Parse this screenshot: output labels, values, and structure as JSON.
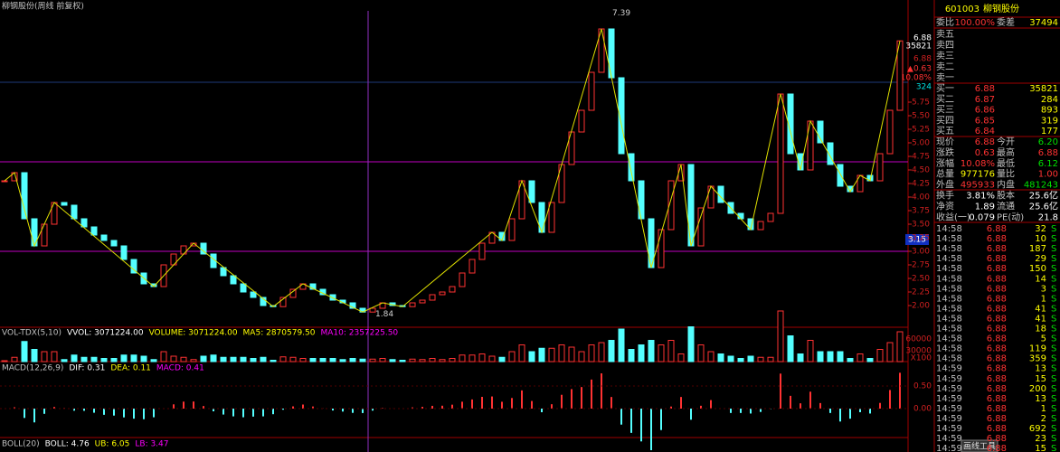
{
  "chart_title": "柳钢股份(周线 前复权)",
  "price_panel": {
    "ticks": [
      "5.75",
      "5.50",
      "5.25",
      "5.00",
      "4.75",
      "4.50",
      "4.25",
      "4.00",
      "3.75",
      "3.50",
      "3.25",
      "3.00",
      "2.75",
      "2.50",
      "2.25",
      "2.00"
    ],
    "cursor_labels": [
      "6.88",
      "35821",
      "6.88",
      "▲0.63",
      "10.08%",
      "324"
    ],
    "high_label": "7.39",
    "low_label": "1.84",
    "line_label": "3.15",
    "closes": [
      4.3,
      4.45,
      3.6,
      3.1,
      3.5,
      3.9,
      3.85,
      3.6,
      3.45,
      3.3,
      3.2,
      3.1,
      2.85,
      2.6,
      2.4,
      2.35,
      2.75,
      2.95,
      3.1,
      3.15,
      2.95,
      2.7,
      2.55,
      2.4,
      2.25,
      2.15,
      2.0,
      1.98,
      2.15,
      2.3,
      2.4,
      2.3,
      2.2,
      2.1,
      2.05,
      1.95,
      1.88,
      1.95,
      2.05,
      2.0,
      1.98,
      2.05,
      2.1,
      2.2,
      2.25,
      2.35,
      2.6,
      2.85,
      3.15,
      3.35,
      3.2,
      3.6,
      4.3,
      3.9,
      3.35,
      3.9,
      4.6,
      5.2,
      5.6,
      6.3,
      7.1,
      6.2,
      4.8,
      4.3,
      3.6,
      2.7,
      3.4,
      4.3,
      4.6,
      3.1,
      3.8,
      4.2,
      3.9,
      3.7,
      3.6,
      3.4,
      3.55,
      3.7,
      5.9,
      4.8,
      4.5,
      5.4,
      5.0,
      4.6,
      4.2,
      4.1,
      4.4,
      4.3,
      4.8,
      5.6,
      6.88
    ]
  },
  "volume_panel": {
    "label_parts": [
      {
        "text": "VOL-TDX(5,10)",
        "color": "#c0c0c0"
      },
      {
        "text": "VVOL: 3071224.00",
        "color": "#ffffff"
      },
      {
        "text": "VOLUME: 3071224.00",
        "color": "#ffff00"
      },
      {
        "text": "MA5: 2870579.50",
        "color": "#ffff00"
      },
      {
        "text": "MA10: 2357225.50",
        "color": "#ff00ff"
      }
    ],
    "ticks": [
      "60000",
      "30000",
      "X100"
    ]
  },
  "macd_panel": {
    "label_parts": [
      {
        "text": "MACD(12,26,9)",
        "color": "#c0c0c0"
      },
      {
        "text": "DIF: 0.31",
        "color": "#ffffff"
      },
      {
        "text": "DEA: 0.11",
        "color": "#ffff00"
      },
      {
        "text": "MACD: 0.41",
        "color": "#ff00ff"
      }
    ],
    "ticks": [
      "0.50",
      "0.00"
    ]
  },
  "boll_panel": {
    "label_parts": [
      {
        "text": "BOLL(20)",
        "color": "#c0c0c0"
      },
      {
        "text": "BOLL: 4.76",
        "color": "#ffffff"
      },
      {
        "text": "UB: 6.05",
        "color": "#ffff00"
      },
      {
        "text": "LB: 3.47",
        "color": "#ff00ff"
      }
    ]
  },
  "quote": {
    "code": "601003",
    "name": "柳钢股份",
    "ratio": {
      "label": "委比",
      "value": "100.00%",
      "label2": "委差",
      "value2": "37494"
    },
    "asks": [
      "卖五",
      "卖四",
      "卖三",
      "卖二",
      "卖一"
    ],
    "bids": [
      {
        "label": "买一",
        "price": "6.88",
        "volume": "35821"
      },
      {
        "label": "买二",
        "price": "6.87",
        "volume": "284"
      },
      {
        "label": "买三",
        "price": "6.86",
        "volume": "893"
      },
      {
        "label": "买四",
        "price": "6.85",
        "volume": "319"
      },
      {
        "label": "买五",
        "price": "6.84",
        "volume": "177"
      }
    ],
    "stats": [
      {
        "label": "现价",
        "value": "6.88",
        "label2": "今开",
        "value2": "6.20"
      },
      {
        "label": "涨跌",
        "value": "0.63",
        "label2": "最高",
        "value2": "6.88"
      },
      {
        "label": "涨幅",
        "value": "10.08%",
        "label2": "最低",
        "value2": "6.12"
      },
      {
        "label": "总量",
        "value": "977176",
        "label2": "量比",
        "value2": "1.00"
      },
      {
        "label": "外盘",
        "value": "495933",
        "label2": "内盘",
        "value2": "481243"
      },
      {
        "label": "换手",
        "value": "3.81%",
        "label2": "股本",
        "value2": "25.6亿"
      },
      {
        "label": "净资",
        "value": "1.89",
        "label2": "流通",
        "value2": "25.6亿"
      },
      {
        "label": "收益(一)",
        "value": "0.079",
        "label2": "PE(动)",
        "value2": "21.8"
      }
    ],
    "trades": [
      {
        "time": "14:58",
        "price": "6.88",
        "volume": "32",
        "side": "S"
      },
      {
        "time": "14:58",
        "price": "6.88",
        "volume": "10",
        "side": "S"
      },
      {
        "time": "14:58",
        "price": "6.88",
        "volume": "187",
        "side": "S"
      },
      {
        "time": "14:58",
        "price": "6.88",
        "volume": "29",
        "side": "S"
      },
      {
        "time": "14:58",
        "price": "6.88",
        "volume": "150",
        "side": "S"
      },
      {
        "time": "14:58",
        "price": "6.88",
        "volume": "14",
        "side": "S"
      },
      {
        "time": "14:58",
        "price": "6.88",
        "volume": "3",
        "side": "S"
      },
      {
        "time": "14:58",
        "price": "6.88",
        "volume": "1",
        "side": "S"
      },
      {
        "time": "14:58",
        "price": "6.88",
        "volume": "41",
        "side": "S"
      },
      {
        "time": "14:58",
        "price": "6.88",
        "volume": "41",
        "side": "S"
      },
      {
        "time": "14:58",
        "price": "6.88",
        "volume": "18",
        "side": "S"
      },
      {
        "time": "14:58",
        "price": "6.88",
        "volume": "5",
        "side": "S"
      },
      {
        "time": "14:58",
        "price": "6.88",
        "volume": "119",
        "side": "S"
      },
      {
        "time": "14:58",
        "price": "6.88",
        "volume": "359",
        "side": "S"
      },
      {
        "time": "14:59",
        "price": "6.88",
        "volume": "13",
        "side": "S"
      },
      {
        "time": "14:59",
        "price": "6.88",
        "volume": "15",
        "side": "S"
      },
      {
        "time": "14:59",
        "price": "6.88",
        "volume": "200",
        "side": "S"
      },
      {
        "time": "14:59",
        "price": "6.88",
        "volume": "13",
        "side": "S"
      },
      {
        "time": "14:59",
        "price": "6.88",
        "volume": "1",
        "side": "S"
      },
      {
        "time": "14:59",
        "price": "6.88",
        "volume": "2",
        "side": "S"
      },
      {
        "time": "14:59",
        "price": "6.88",
        "volume": "692",
        "side": "S"
      },
      {
        "time": "14:59",
        "price": "6.88",
        "volume": "23",
        "side": "S"
      },
      {
        "time": "14:59",
        "price": "6.88",
        "volume": "15",
        "side": "S"
      }
    ]
  },
  "toolbar_button": "画线工具"
}
